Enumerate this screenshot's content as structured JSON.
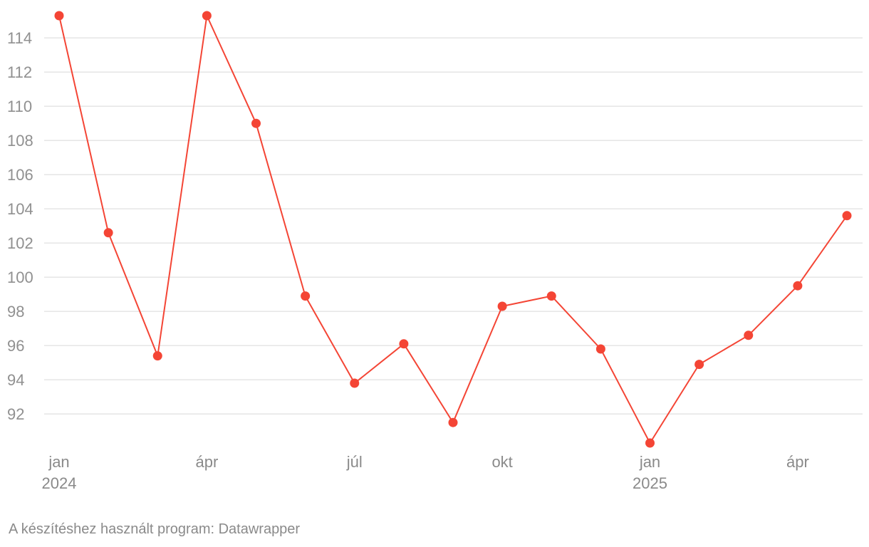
{
  "chart_data": {
    "type": "line",
    "x": [
      "2024-01",
      "2024-02",
      "2024-03",
      "2024-04",
      "2024-05",
      "2024-06",
      "2024-07",
      "2024-08",
      "2024-09",
      "2024-10",
      "2024-11",
      "2024-12",
      "2025-01",
      "2025-02",
      "2025-03",
      "2025-04",
      "2025-05"
    ],
    "series": [
      {
        "values": [
          115.3,
          102.6,
          95.4,
          115.3,
          109.0,
          98.9,
          93.8,
          96.1,
          91.5,
          98.3,
          98.9,
          95.8,
          90.3,
          94.9,
          96.6,
          99.5,
          103.6
        ]
      }
    ],
    "yticks": [
      "92",
      "94",
      "96",
      "98",
      "100",
      "102",
      "104",
      "106",
      "108",
      "110",
      "112",
      "114"
    ],
    "ylim": [
      90.3,
      115.3
    ],
    "xticks": [
      {
        "label": "jan",
        "sublabel": "2024",
        "x": "2024-01"
      },
      {
        "label": "ápr",
        "sublabel": "",
        "x": "2024-04"
      },
      {
        "label": "júl",
        "sublabel": "",
        "x": "2024-07"
      },
      {
        "label": "okt",
        "sublabel": "",
        "x": "2024-10"
      },
      {
        "label": "jan",
        "sublabel": "2025",
        "x": "2025-01"
      },
      {
        "label": "ápr",
        "sublabel": "",
        "x": "2025-04"
      }
    ],
    "grid": true,
    "color": "#f44535"
  },
  "footer": {
    "credit": "A készítéshez használt program: Datawrapper"
  }
}
